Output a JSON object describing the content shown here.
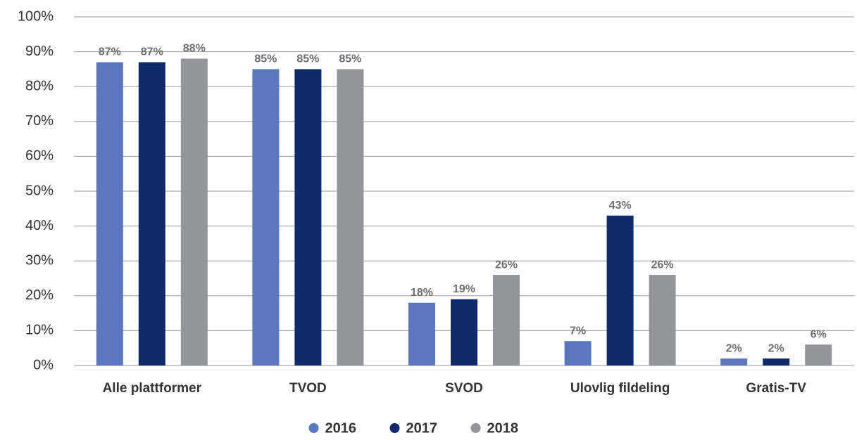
{
  "chart_data": {
    "type": "bar",
    "categories": [
      "Alle plattformer",
      "TVOD",
      "SVOD",
      "Ulovlig fildeling",
      "Gratis-TV"
    ],
    "series": [
      {
        "name": "2016",
        "color": "#5b78be",
        "values": [
          87,
          85,
          18,
          7,
          2
        ],
        "value_labels": [
          "87%",
          "85%",
          "18%",
          "7%",
          "2%"
        ]
      },
      {
        "name": "2017",
        "color": "#0f2a6b",
        "values": [
          87,
          85,
          19,
          43,
          2
        ],
        "value_labels": [
          "87%",
          "85%",
          "19%",
          "43%",
          "2%"
        ]
      },
      {
        "name": "2018",
        "color": "#939598",
        "values": [
          88,
          85,
          26,
          26,
          6
        ],
        "value_labels": [
          "88%",
          "85%",
          "26%",
          "26%",
          "6%"
        ]
      }
    ],
    "ylim": [
      0,
      100
    ],
    "yticks": [
      {
        "value": 0,
        "label": "0%"
      },
      {
        "value": 10,
        "label": "10%"
      },
      {
        "value": 20,
        "label": "20%"
      },
      {
        "value": 30,
        "label": "30%"
      },
      {
        "value": 40,
        "label": "40%"
      },
      {
        "value": 50,
        "label": "50%"
      },
      {
        "value": 60,
        "label": "60%"
      },
      {
        "value": 70,
        "label": "70%"
      },
      {
        "value": 80,
        "label": "80%"
      },
      {
        "value": 90,
        "label": "90%"
      },
      {
        "value": 100,
        "label": "100%"
      }
    ],
    "grid": true,
    "legend": "bottom"
  }
}
